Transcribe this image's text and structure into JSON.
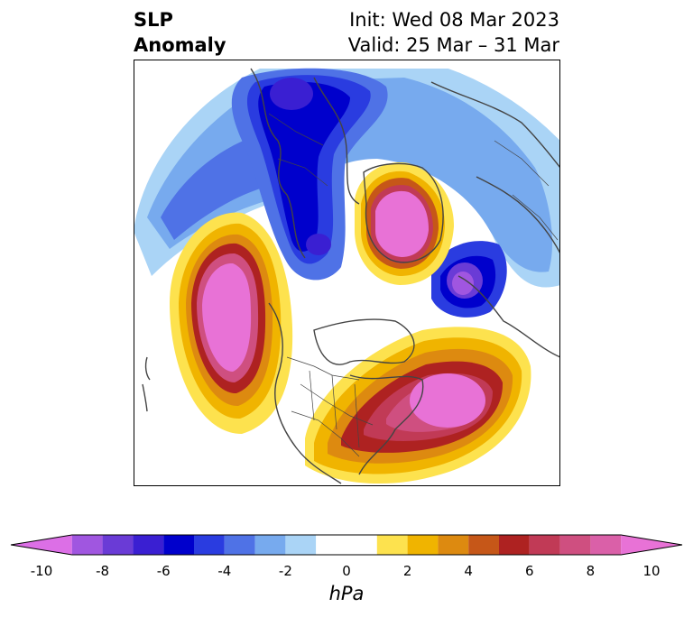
{
  "title": {
    "variable_line1": "SLP",
    "variable_line2": "Anomaly",
    "init": "Init: Wed 08 Mar 2023",
    "valid": "Valid: 25 Mar – 31 Mar"
  },
  "map": {
    "projection": "north-polar-stereographic",
    "field": "sea level pressure anomaly",
    "features": [
      {
        "name": "alaska-bering-high",
        "sign": "positive",
        "peak_hpa": 10
      },
      {
        "name": "arctic-greenland-high",
        "sign": "positive",
        "peak_hpa": 10
      },
      {
        "name": "western-atlantic-high",
        "sign": "positive",
        "peak_hpa": 10
      },
      {
        "name": "eurasian-arctic-low",
        "sign": "negative",
        "peak_hpa": -8
      },
      {
        "name": "north-atlantic-low",
        "sign": "negative",
        "peak_hpa": -8
      },
      {
        "name": "north-pacific-low",
        "sign": "negative",
        "peak_hpa": -4
      }
    ]
  },
  "colorbar": {
    "units": "hPa",
    "min": -10,
    "max": 10,
    "levels": [
      -10,
      -9,
      -8,
      -7,
      -6,
      -5,
      -4,
      -3,
      -2,
      -1,
      1,
      2,
      3,
      4,
      5,
      6,
      7,
      8,
      9,
      10
    ],
    "colors": [
      "#dc6fe6",
      "#a056e0",
      "#6a3bd6",
      "#3a1fd2",
      "#0000cc",
      "#2a3ce0",
      "#4f72e6",
      "#77aaee",
      "#aad4f6",
      "#ffffff",
      "#fde24e",
      "#f0b400",
      "#dd8a10",
      "#c65718",
      "#ae2221",
      "#c13a56",
      "#cf4f80",
      "#da60a8",
      "#e872d6"
    ],
    "ticks": [
      {
        "value": -10,
        "label": "-10"
      },
      {
        "value": -8,
        "label": "-8"
      },
      {
        "value": -6,
        "label": "-6"
      },
      {
        "value": -4,
        "label": "-4"
      },
      {
        "value": -2,
        "label": "-2"
      },
      {
        "value": 0,
        "label": "0"
      },
      {
        "value": 2,
        "label": "2"
      },
      {
        "value": 4,
        "label": "4"
      },
      {
        "value": 6,
        "label": "6"
      },
      {
        "value": 8,
        "label": "8"
      },
      {
        "value": 10,
        "label": "10"
      }
    ]
  }
}
